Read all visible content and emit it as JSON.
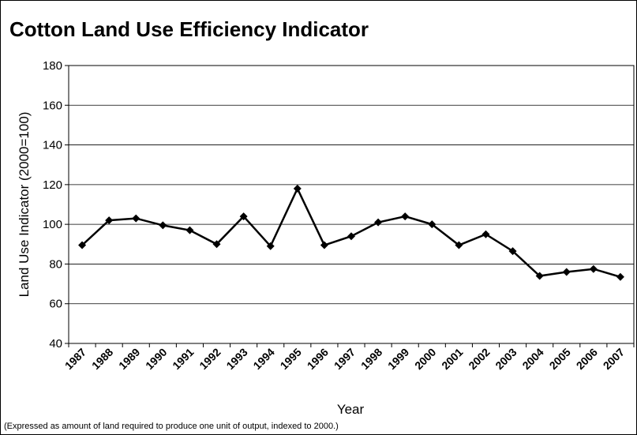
{
  "chart_data": {
    "type": "line",
    "title": "Cotton Land Use Efficiency Indicator",
    "x_label": "Year",
    "y_label": "Land Use Indicator (2000=100)",
    "footnote": "(Expressed as amount of land required to produce one unit of output, indexed to 2000.)",
    "categories": [
      "1987",
      "1988",
      "1989",
      "1990",
      "1991",
      "1992",
      "1993",
      "1994",
      "1995",
      "1996",
      "1997",
      "1998",
      "1999",
      "2000",
      "2001",
      "2002",
      "2003",
      "2004",
      "2005",
      "2006",
      "2007"
    ],
    "series": [
      {
        "name": "Land Use Indicator",
        "color": "#000000",
        "values": [
          89.5,
          102,
          103,
          99.5,
          97,
          90,
          104,
          89,
          118,
          89.5,
          94,
          101,
          104,
          100,
          89.5,
          95,
          86.5,
          74,
          76,
          77.5,
          73.5
        ]
      }
    ],
    "ylim": [
      40,
      180
    ],
    "yticks": [
      40,
      60,
      80,
      100,
      120,
      140,
      160,
      180
    ],
    "grid": true
  }
}
